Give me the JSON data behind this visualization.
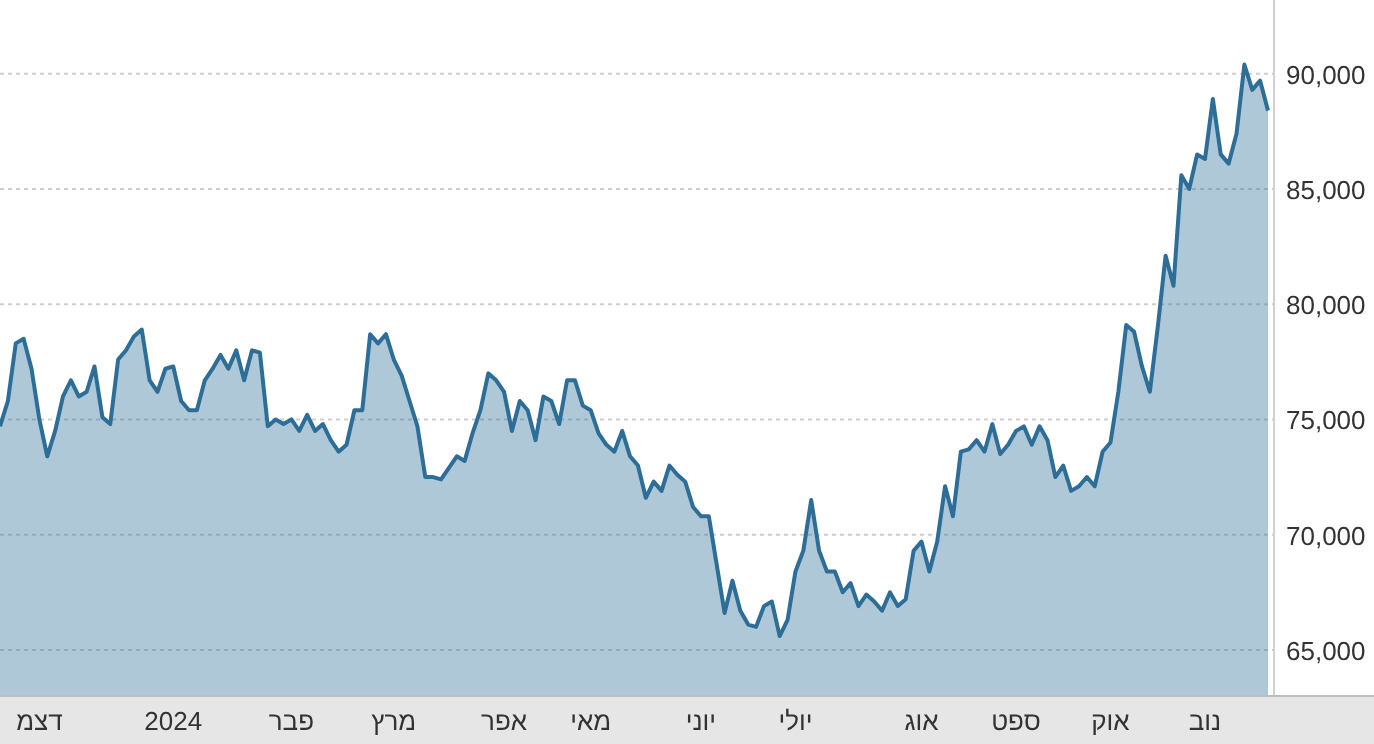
{
  "chart_data": {
    "type": "area",
    "color": "#2d6e99",
    "grid": "y",
    "ylim": [
      63000,
      93200
    ],
    "yticks": [
      {
        "value": 65000,
        "label": "65,000"
      },
      {
        "value": 70000,
        "label": "70,000"
      },
      {
        "value": 75000,
        "label": "75,000"
      },
      {
        "value": 80000,
        "label": "80,000"
      },
      {
        "value": 85000,
        "label": "85,000"
      },
      {
        "value": 90000,
        "label": "90,000"
      }
    ],
    "categories": [
      null,
      null,
      null,
      null,
      null,
      "דצמ",
      null,
      null,
      null,
      null,
      null,
      null,
      null,
      null,
      null,
      null,
      null,
      null,
      null,
      null,
      null,
      null,
      "2024",
      null,
      null,
      null,
      null,
      null,
      null,
      null,
      null,
      null,
      null,
      null,
      null,
      null,
      null,
      "פבר",
      null,
      null,
      null,
      null,
      null,
      null,
      null,
      null,
      null,
      null,
      null,
      null,
      "מרץ",
      null,
      null,
      null,
      null,
      null,
      null,
      null,
      null,
      null,
      null,
      null,
      null,
      null,
      "אפר",
      null,
      null,
      null,
      null,
      null,
      null,
      null,
      null,
      null,
      null,
      "מאי",
      null,
      null,
      null,
      null,
      null,
      null,
      null,
      null,
      null,
      null,
      null,
      null,
      null,
      "יוני",
      null,
      null,
      null,
      null,
      null,
      null,
      null,
      null,
      null,
      null,
      null,
      "יולי",
      null,
      null,
      null,
      null,
      null,
      null,
      null,
      null,
      null,
      null,
      null,
      null,
      null,
      null,
      null,
      "אוג",
      null,
      null,
      null,
      null,
      null,
      null,
      null,
      null,
      null,
      null,
      null,
      "ספט",
      null,
      null,
      null,
      null,
      null,
      null,
      null,
      null,
      null,
      null,
      null,
      "אוק",
      null,
      null,
      null,
      null,
      null,
      null,
      null,
      null,
      null,
      null,
      null,
      "נוב",
      null,
      null,
      null,
      null,
      null,
      null,
      null,
      null
    ],
    "values": [
      74700,
      75800,
      78300,
      78500,
      77200,
      75000,
      73400,
      74500,
      76000,
      76700,
      76000,
      76200,
      77300,
      75100,
      74800,
      77600,
      78000,
      78600,
      78900,
      76700,
      76200,
      77200,
      77300,
      75800,
      75400,
      75400,
      76700,
      77200,
      77800,
      77200,
      78000,
      76700,
      78000,
      77900,
      74700,
      75000,
      74800,
      75000,
      74500,
      75200,
      74500,
      74800,
      74100,
      73600,
      73900,
      75400,
      75400,
      78700,
      78300,
      78700,
      77600,
      76900,
      75800,
      74700,
      72500,
      72500,
      72400,
      72900,
      73400,
      73200,
      74400,
      75400,
      77000,
      76700,
      76200,
      74500,
      75800,
      75400,
      74100,
      76000,
      75800,
      74800,
      76700,
      76700,
      75600,
      75400,
      74400,
      73900,
      73600,
      74500,
      73400,
      73000,
      71600,
      72300,
      71900,
      73000,
      72600,
      72300,
      71200,
      70800,
      70800,
      68700,
      66600,
      68000,
      66700,
      66100,
      66000,
      66900,
      67100,
      65600,
      66300,
      68400,
      69300,
      71500,
      69300,
      68400,
      68400,
      67500,
      67900,
      66900,
      67400,
      67100,
      66700,
      67500,
      66900,
      67200,
      69300,
      69700,
      68400,
      69700,
      72100,
      70800,
      73600,
      73700,
      74100,
      73600,
      74800,
      73500,
      73900,
      74500,
      74700,
      73900,
      74700,
      74100,
      72500,
      73000,
      71900,
      72100,
      72500,
      72100,
      73600,
      74000,
      76200,
      79100,
      78800,
      77300,
      76200,
      79000,
      82100,
      80800,
      85600,
      85000,
      86500,
      86300,
      88900,
      86500,
      86100,
      87400,
      90400,
      89300,
      89700,
      88400
    ]
  }
}
